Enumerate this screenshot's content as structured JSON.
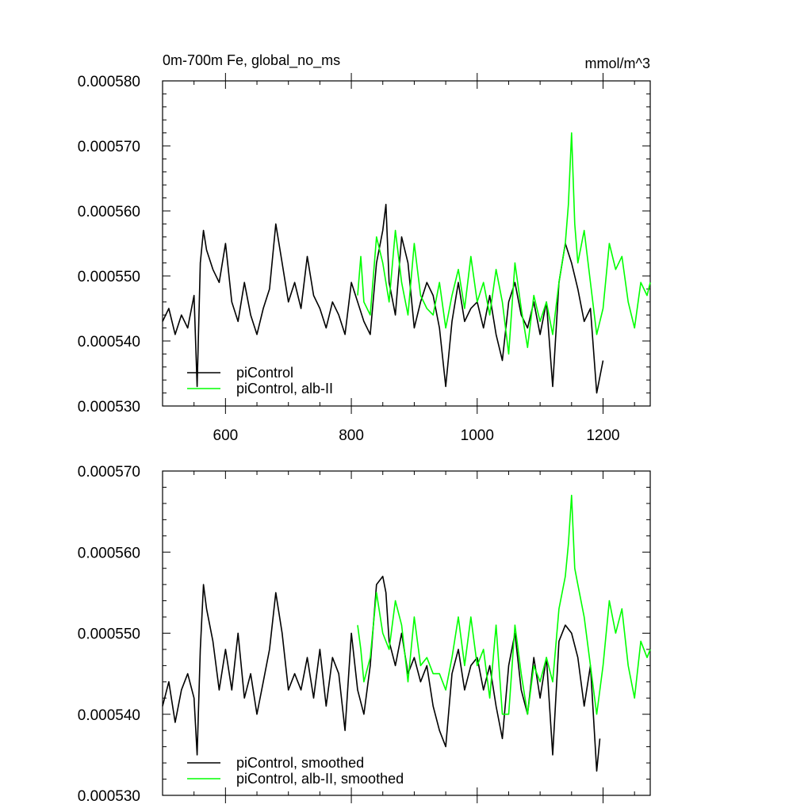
{
  "figure": {
    "title": "0m-700m Fe, global_no_ms",
    "units": "mmol/m^3"
  },
  "chart_data": [
    {
      "type": "line",
      "id": "top",
      "title": "0m-700m Fe, global_no_ms",
      "units_label": "mmol/m^3",
      "xlim": [
        500,
        1275
      ],
      "ylim": [
        0.00053,
        0.00058
      ],
      "xticks": [
        600,
        800,
        1000,
        1200
      ],
      "xticklabels": [
        "600",
        "800",
        "1000",
        "1200"
      ],
      "yticks": [
        0.00053,
        0.00054,
        0.00055,
        0.00056,
        0.00057,
        0.00058
      ],
      "yticklabels": [
        "0.000530",
        "0.000540",
        "0.000550",
        "0.000560",
        "0.000570",
        "0.000580"
      ],
      "legend_position": "lower-left",
      "series": [
        {
          "name": "piControl",
          "color": "#000000",
          "x": [
            500,
            510,
            520,
            530,
            540,
            550,
            555,
            560,
            565,
            570,
            580,
            590,
            600,
            610,
            620,
            630,
            640,
            650,
            660,
            670,
            680,
            690,
            700,
            710,
            720,
            730,
            740,
            750,
            760,
            770,
            780,
            790,
            800,
            810,
            820,
            830,
            840,
            850,
            855,
            860,
            870,
            880,
            890,
            900,
            910,
            920,
            930,
            940,
            950,
            960,
            970,
            980,
            990,
            1000,
            1010,
            1020,
            1030,
            1040,
            1050,
            1060,
            1070,
            1080,
            1090,
            1100,
            1110,
            1120,
            1130,
            1140,
            1150,
            1160,
            1170,
            1180,
            1190,
            1200
          ],
          "y": [
            0.000543,
            0.000545,
            0.000541,
            0.000544,
            0.000542,
            0.000547,
            0.000533,
            0.000552,
            0.000557,
            0.000554,
            0.000551,
            0.000549,
            0.000555,
            0.000546,
            0.000543,
            0.000549,
            0.000544,
            0.000541,
            0.000545,
            0.000548,
            0.000558,
            0.000552,
            0.000546,
            0.000549,
            0.000545,
            0.000553,
            0.000547,
            0.000545,
            0.000542,
            0.000546,
            0.000544,
            0.000541,
            0.000549,
            0.000546,
            0.000543,
            0.000541,
            0.000552,
            0.000557,
            0.000561,
            0.000549,
            0.000544,
            0.000556,
            0.000552,
            0.000542,
            0.000546,
            0.000549,
            0.000547,
            0.000542,
            0.000533,
            0.000543,
            0.000549,
            0.000543,
            0.000545,
            0.000546,
            0.000542,
            0.000547,
            0.000541,
            0.000537,
            0.000546,
            0.000549,
            0.000544,
            0.000542,
            0.000546,
            0.000541,
            0.000546,
            0.000533,
            0.000549,
            0.000555,
            0.000552,
            0.000548,
            0.000543,
            0.000545,
            0.000532,
            0.000537
          ]
        },
        {
          "name": "piControl, alb-II",
          "color": "#00ff00",
          "x": [
            810,
            815,
            820,
            830,
            840,
            850,
            860,
            870,
            880,
            890,
            900,
            910,
            920,
            930,
            940,
            950,
            960,
            970,
            980,
            990,
            1000,
            1010,
            1020,
            1030,
            1040,
            1050,
            1060,
            1070,
            1080,
            1090,
            1100,
            1110,
            1120,
            1130,
            1140,
            1145,
            1150,
            1155,
            1160,
            1170,
            1180,
            1190,
            1200,
            1210,
            1220,
            1230,
            1240,
            1250,
            1260,
            1270,
            1275
          ],
          "y": [
            0.000547,
            0.000553,
            0.000546,
            0.000544,
            0.000556,
            0.000552,
            0.000546,
            0.000557,
            0.000549,
            0.000544,
            0.000555,
            0.000547,
            0.000545,
            0.000544,
            0.000549,
            0.000542,
            0.000547,
            0.000551,
            0.000545,
            0.000553,
            0.000546,
            0.000549,
            0.000544,
            0.000551,
            0.000546,
            0.000538,
            0.000552,
            0.000545,
            0.000539,
            0.000547,
            0.000543,
            0.000546,
            0.000541,
            0.000549,
            0.000555,
            0.000561,
            0.000572,
            0.000558,
            0.000552,
            0.000557,
            0.000549,
            0.000541,
            0.000545,
            0.000555,
            0.000551,
            0.000553,
            0.000546,
            0.000542,
            0.000549,
            0.000547,
            0.000549
          ]
        }
      ]
    },
    {
      "type": "line",
      "id": "bottom",
      "xlim": [
        500,
        1275
      ],
      "ylim": [
        0.00053,
        0.00057
      ],
      "xticks": [
        600,
        800,
        1000,
        1200
      ],
      "yticks": [
        0.00053,
        0.00054,
        0.00055,
        0.00056,
        0.00057
      ],
      "yticklabels": [
        "0.000530",
        "0.000540",
        "0.000550",
        "0.000560",
        "0.000570"
      ],
      "legend_position": "lower-left",
      "series": [
        {
          "name": "piControl, smoothed",
          "color": "#000000",
          "x": [
            500,
            510,
            520,
            530,
            540,
            550,
            555,
            560,
            565,
            570,
            580,
            590,
            600,
            610,
            620,
            630,
            640,
            650,
            660,
            670,
            680,
            690,
            700,
            710,
            720,
            730,
            740,
            750,
            760,
            770,
            780,
            790,
            800,
            810,
            820,
            830,
            840,
            850,
            855,
            860,
            870,
            880,
            890,
            900,
            910,
            920,
            930,
            940,
            950,
            960,
            970,
            980,
            990,
            1000,
            1010,
            1020,
            1030,
            1040,
            1050,
            1060,
            1070,
            1080,
            1090,
            1100,
            1110,
            1120,
            1130,
            1140,
            1150,
            1160,
            1170,
            1180,
            1190,
            1195
          ],
          "y": [
            0.000541,
            0.000544,
            0.000539,
            0.000543,
            0.000545,
            0.000542,
            0.000535,
            0.000548,
            0.000556,
            0.000553,
            0.000549,
            0.000543,
            0.000548,
            0.000543,
            0.00055,
            0.000542,
            0.000545,
            0.00054,
            0.000544,
            0.000548,
            0.000555,
            0.00055,
            0.000543,
            0.000545,
            0.000543,
            0.000547,
            0.000542,
            0.000548,
            0.000541,
            0.000547,
            0.000545,
            0.000538,
            0.00055,
            0.000543,
            0.00054,
            0.000546,
            0.000556,
            0.000557,
            0.000555,
            0.000549,
            0.000546,
            0.00055,
            0.000545,
            0.000547,
            0.000544,
            0.000546,
            0.000541,
            0.000538,
            0.000536,
            0.000545,
            0.000548,
            0.000543,
            0.000546,
            0.000547,
            0.000543,
            0.000546,
            0.000541,
            0.000537,
            0.000546,
            0.00055,
            0.000543,
            0.00054,
            0.000547,
            0.000542,
            0.000547,
            0.000535,
            0.000549,
            0.000551,
            0.00055,
            0.000547,
            0.000541,
            0.000546,
            0.000533,
            0.000537
          ]
        },
        {
          "name": "piControl, alb-II, smoothed",
          "color": "#00ff00",
          "x": [
            810,
            815,
            820,
            830,
            840,
            850,
            860,
            870,
            880,
            890,
            900,
            910,
            920,
            930,
            940,
            950,
            960,
            970,
            980,
            990,
            1000,
            1010,
            1020,
            1030,
            1040,
            1050,
            1060,
            1070,
            1080,
            1090,
            1100,
            1110,
            1120,
            1130,
            1140,
            1145,
            1150,
            1155,
            1160,
            1170,
            1180,
            1190,
            1200,
            1210,
            1220,
            1230,
            1240,
            1250,
            1260,
            1270,
            1275
          ],
          "y": [
            0.000551,
            0.000548,
            0.000544,
            0.000547,
            0.000555,
            0.00055,
            0.000548,
            0.000554,
            0.000551,
            0.000544,
            0.000552,
            0.000546,
            0.000547,
            0.000545,
            0.000545,
            0.000543,
            0.000547,
            0.000552,
            0.000546,
            0.000552,
            0.000546,
            0.000548,
            0.000542,
            0.000551,
            0.00054,
            0.00054,
            0.000551,
            0.000545,
            0.00054,
            0.000546,
            0.000544,
            0.000547,
            0.000544,
            0.000553,
            0.000557,
            0.000561,
            0.000567,
            0.000558,
            0.000556,
            0.000552,
            0.000546,
            0.00054,
            0.000546,
            0.000554,
            0.00055,
            0.000553,
            0.000546,
            0.000542,
            0.000549,
            0.000547,
            0.000548
          ]
        }
      ]
    }
  ]
}
